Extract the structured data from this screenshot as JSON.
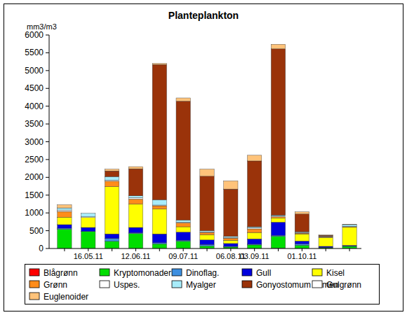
{
  "chart_data": {
    "type": "bar",
    "title": "Planteplankton",
    "y_label": "mm3/m3",
    "stacked": true,
    "grid": false,
    "legend": "bottom",
    "categories": [
      null,
      "16.05.11",
      null,
      "12.06.11",
      null,
      "09.07.11",
      null,
      "06.08.11",
      "03.09.11",
      null,
      "01.10.11",
      null,
      null
    ],
    "ylim": [
      0,
      6000
    ],
    "yticks": [
      0,
      500,
      1000,
      1500,
      2000,
      2500,
      3000,
      3500,
      4000,
      4500,
      5000,
      5500,
      6000
    ],
    "series": [
      {
        "name": "Blågrønn",
        "color": "#ff0000",
        "values": [
          0,
          0,
          0,
          0,
          0,
          0,
          0,
          0,
          0,
          10,
          0,
          0,
          0
        ]
      },
      {
        "name": "Kryptomonader",
        "color": "#00dd00",
        "values": [
          540,
          480,
          200,
          420,
          130,
          200,
          70,
          40,
          100,
          330,
          90,
          20,
          60
        ]
      },
      {
        "name": "Dinoflag.",
        "color": "#3d8fe0",
        "values": [
          30,
          0,
          80,
          20,
          30,
          30,
          40,
          20,
          20,
          30,
          40,
          10,
          10
        ]
      },
      {
        "name": "Gull",
        "color": "#0000dd",
        "values": [
          100,
          110,
          130,
          150,
          250,
          230,
          130,
          80,
          150,
          370,
          80,
          30,
          20
        ]
      },
      {
        "name": "Kisel",
        "color": "#ffff00",
        "values": [
          210,
          280,
          1330,
          660,
          700,
          150,
          150,
          90,
          180,
          120,
          200,
          250,
          510
        ]
      },
      {
        "name": "Grønn",
        "color": "#ff8c1a",
        "values": [
          160,
          0,
          150,
          140,
          90,
          110,
          60,
          60,
          100,
          30,
          20,
          10,
          10
        ]
      },
      {
        "name": "Uspes.",
        "color": "#ffffff",
        "values": [
          40,
          20,
          30,
          40,
          20,
          20,
          20,
          20,
          30,
          20,
          20,
          10,
          10
        ]
      },
      {
        "name": "Myalger",
        "color": "#a8ecfa",
        "values": [
          60,
          100,
          100,
          50,
          150,
          60,
          30,
          30,
          30,
          30,
          20,
          10,
          50
        ]
      },
      {
        "name": "Gonyostomum semen",
        "color": "#9a330a",
        "values": [
          0,
          0,
          160,
          760,
          3800,
          3340,
          1530,
          1330,
          1850,
          4670,
          500,
          30,
          0
        ]
      },
      {
        "name": "Gulgrønn",
        "color": "#ffffff",
        "values": [
          0,
          0,
          0,
          0,
          0,
          0,
          0,
          0,
          0,
          0,
          0,
          0,
          0
        ]
      },
      {
        "name": "Euglenoider",
        "color": "#ffc37a",
        "values": [
          90,
          0,
          50,
          60,
          30,
          90,
          200,
          230,
          160,
          130,
          60,
          10,
          10
        ]
      }
    ]
  }
}
